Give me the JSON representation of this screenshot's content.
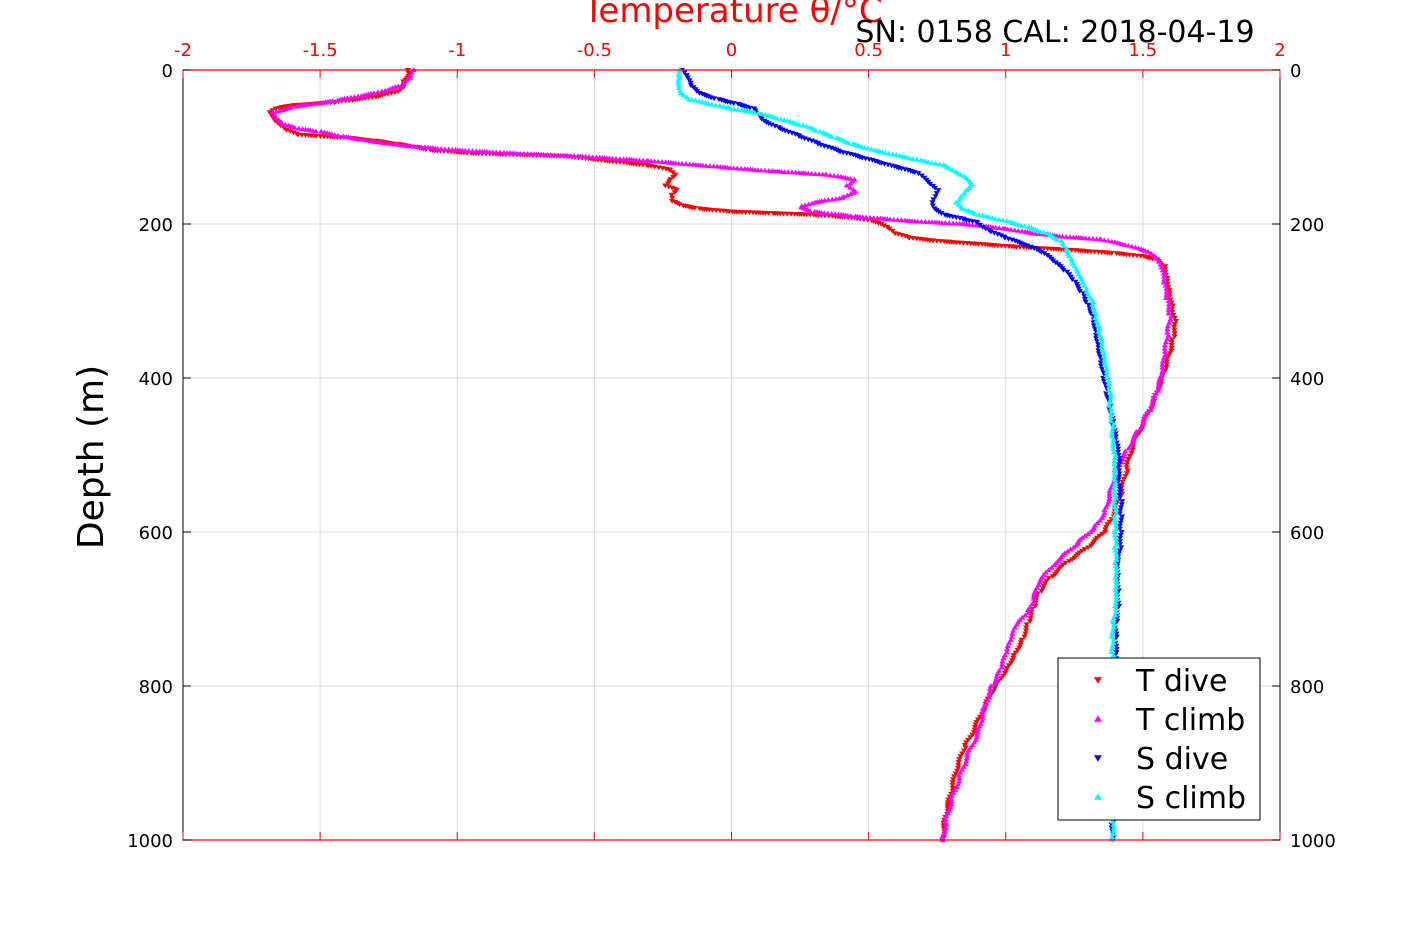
{
  "chart_data": {
    "type": "scatter",
    "title": "SN: 0158  CAL: 2018-04-19",
    "xlabel": "Temperature θ/°C",
    "ylabel": "Depth (m)",
    "xlim": [
      -2,
      2
    ],
    "ylim": [
      0,
      1000
    ],
    "y_reversed": true,
    "grid": true,
    "x_ticks": [
      "-2",
      "-1.5",
      "-1",
      "-0.5",
      "0",
      "0.5",
      "1",
      "1.5",
      "2"
    ],
    "y_ticks": [
      "0",
      "200",
      "400",
      "600",
      "800",
      "1000"
    ],
    "legend_position": "bottom-right",
    "colors": {
      "x_axis": "#ff0000",
      "grid": "#dcdcdc",
      "t_dive": "#ff0000",
      "t_climb": "#ff00ff",
      "s_dive": "#0000ff",
      "s_climb": "#00ffff"
    },
    "series": [
      {
        "name": "T dive",
        "marker": "triangle-down",
        "color": "#ff0000",
        "points": [
          [
            -1.18,
            0
          ],
          [
            -1.18,
            8
          ],
          [
            -1.2,
            15
          ],
          [
            -1.2,
            22
          ],
          [
            -1.22,
            28
          ],
          [
            -1.3,
            35
          ],
          [
            -1.45,
            42
          ],
          [
            -1.6,
            46
          ],
          [
            -1.66,
            50
          ],
          [
            -1.68,
            55
          ],
          [
            -1.67,
            60
          ],
          [
            -1.66,
            66
          ],
          [
            -1.64,
            72
          ],
          [
            -1.62,
            78
          ],
          [
            -1.58,
            84
          ],
          [
            -1.5,
            86
          ],
          [
            -1.4,
            88
          ],
          [
            -1.3,
            92
          ],
          [
            -1.22,
            96
          ],
          [
            -1.15,
            100
          ],
          [
            -1.1,
            104
          ],
          [
            -0.95,
            108
          ],
          [
            -0.6,
            112
          ],
          [
            -0.45,
            118
          ],
          [
            -0.3,
            124
          ],
          [
            -0.22,
            130
          ],
          [
            -0.2,
            136
          ],
          [
            -0.22,
            142
          ],
          [
            -0.24,
            150
          ],
          [
            -0.2,
            156
          ],
          [
            -0.22,
            162
          ],
          [
            -0.22,
            170
          ],
          [
            -0.18,
            176
          ],
          [
            -0.12,
            180
          ],
          [
            0.0,
            184
          ],
          [
            0.15,
            186
          ],
          [
            0.3,
            188
          ],
          [
            0.45,
            192
          ],
          [
            0.52,
            196
          ],
          [
            0.55,
            200
          ],
          [
            0.58,
            206
          ],
          [
            0.6,
            212
          ],
          [
            0.65,
            218
          ],
          [
            0.75,
            222
          ],
          [
            0.9,
            226
          ],
          [
            1.05,
            230
          ],
          [
            1.25,
            234
          ],
          [
            1.4,
            238
          ],
          [
            1.5,
            242
          ],
          [
            1.55,
            246
          ],
          [
            1.58,
            255
          ],
          [
            1.59,
            270
          ],
          [
            1.6,
            290
          ],
          [
            1.61,
            310
          ],
          [
            1.62,
            330
          ],
          [
            1.61,
            350
          ],
          [
            1.59,
            375
          ],
          [
            1.57,
            400
          ],
          [
            1.54,
            430
          ],
          [
            1.5,
            460
          ],
          [
            1.46,
            490
          ],
          [
            1.44,
            520
          ],
          [
            1.42,
            550
          ],
          [
            1.39,
            580
          ],
          [
            1.36,
            600
          ],
          [
            1.3,
            620
          ],
          [
            1.22,
            640
          ],
          [
            1.16,
            660
          ],
          [
            1.12,
            680
          ],
          [
            1.1,
            700
          ],
          [
            1.08,
            720
          ],
          [
            1.06,
            740
          ],
          [
            1.03,
            760
          ],
          [
            1.0,
            780
          ],
          [
            0.96,
            800
          ],
          [
            0.92,
            830
          ],
          [
            0.88,
            860
          ],
          [
            0.85,
            880
          ],
          [
            0.82,
            910
          ],
          [
            0.8,
            940
          ],
          [
            0.78,
            970
          ],
          [
            0.77,
            1000
          ]
        ]
      },
      {
        "name": "T climb",
        "marker": "triangle-up",
        "color": "#ff00ff",
        "points": [
          [
            -1.16,
            0
          ],
          [
            -1.17,
            10
          ],
          [
            -1.2,
            20
          ],
          [
            -1.3,
            30
          ],
          [
            -1.45,
            40
          ],
          [
            -1.6,
            48
          ],
          [
            -1.67,
            55
          ],
          [
            -1.66,
            62
          ],
          [
            -1.64,
            70
          ],
          [
            -1.58,
            76
          ],
          [
            -1.5,
            80
          ],
          [
            -1.42,
            86
          ],
          [
            -1.32,
            92
          ],
          [
            -1.2,
            98
          ],
          [
            -1.0,
            104
          ],
          [
            -0.8,
            108
          ],
          [
            -0.55,
            112
          ],
          [
            -0.3,
            118
          ],
          [
            -0.1,
            124
          ],
          [
            0.1,
            130
          ],
          [
            0.35,
            136
          ],
          [
            0.45,
            142
          ],
          [
            0.42,
            150
          ],
          [
            0.45,
            158
          ],
          [
            0.4,
            166
          ],
          [
            0.3,
            172
          ],
          [
            0.25,
            178
          ],
          [
            0.3,
            184
          ],
          [
            0.45,
            190
          ],
          [
            0.65,
            196
          ],
          [
            0.85,
            200
          ],
          [
            1.0,
            206
          ],
          [
            1.1,
            212
          ],
          [
            1.2,
            216
          ],
          [
            1.35,
            220
          ],
          [
            1.45,
            228
          ],
          [
            1.52,
            236
          ],
          [
            1.55,
            245
          ],
          [
            1.57,
            260
          ],
          [
            1.58,
            280
          ],
          [
            1.59,
            300
          ],
          [
            1.6,
            320
          ],
          [
            1.59,
            345
          ],
          [
            1.58,
            370
          ],
          [
            1.57,
            395
          ],
          [
            1.55,
            420
          ],
          [
            1.52,
            445
          ],
          [
            1.48,
            470
          ],
          [
            1.44,
            495
          ],
          [
            1.4,
            520
          ],
          [
            1.38,
            550
          ],
          [
            1.36,
            575
          ],
          [
            1.32,
            595
          ],
          [
            1.26,
            615
          ],
          [
            1.18,
            640
          ],
          [
            1.12,
            665
          ],
          [
            1.1,
            690
          ],
          [
            1.08,
            705
          ],
          [
            1.04,
            720
          ],
          [
            1.02,
            740
          ],
          [
            1.0,
            760
          ],
          [
            0.98,
            780
          ],
          [
            0.95,
            800
          ],
          [
            0.92,
            830
          ],
          [
            0.9,
            860
          ],
          [
            0.86,
            890
          ],
          [
            0.83,
            920
          ],
          [
            0.8,
            950
          ],
          [
            0.78,
            980
          ],
          [
            0.77,
            1000
          ]
        ]
      },
      {
        "name": "S dive",
        "marker": "triangle-down",
        "color": "#0000ff",
        "points": [
          [
            -0.18,
            0
          ],
          [
            -0.16,
            10
          ],
          [
            -0.15,
            20
          ],
          [
            -0.12,
            30
          ],
          [
            -0.05,
            38
          ],
          [
            0.02,
            44
          ],
          [
            0.08,
            50
          ],
          [
            0.1,
            58
          ],
          [
            0.12,
            66
          ],
          [
            0.18,
            76
          ],
          [
            0.25,
            86
          ],
          [
            0.32,
            96
          ],
          [
            0.4,
            106
          ],
          [
            0.48,
            114
          ],
          [
            0.56,
            122
          ],
          [
            0.62,
            128
          ],
          [
            0.68,
            134
          ],
          [
            0.7,
            140
          ],
          [
            0.72,
            148
          ],
          [
            0.75,
            156
          ],
          [
            0.74,
            164
          ],
          [
            0.73,
            172
          ],
          [
            0.74,
            180
          ],
          [
            0.78,
            188
          ],
          [
            0.85,
            194
          ],
          [
            0.9,
            198
          ],
          [
            0.92,
            204
          ],
          [
            0.95,
            210
          ],
          [
            1.0,
            218
          ],
          [
            1.08,
            228
          ],
          [
            1.14,
            238
          ],
          [
            1.18,
            250
          ],
          [
            1.22,
            262
          ],
          [
            1.25,
            275
          ],
          [
            1.28,
            290
          ],
          [
            1.3,
            305
          ],
          [
            1.32,
            320
          ],
          [
            1.33,
            340
          ],
          [
            1.34,
            360
          ],
          [
            1.35,
            380
          ],
          [
            1.36,
            400
          ],
          [
            1.37,
            420
          ],
          [
            1.38,
            440
          ],
          [
            1.39,
            460
          ],
          [
            1.4,
            480
          ],
          [
            1.41,
            500
          ],
          [
            1.41,
            520
          ],
          [
            1.41,
            540
          ],
          [
            1.42,
            560
          ],
          [
            1.42,
            580
          ],
          [
            1.42,
            600
          ],
          [
            1.42,
            620
          ],
          [
            1.41,
            640
          ],
          [
            1.41,
            660
          ],
          [
            1.41,
            680
          ],
          [
            1.41,
            700
          ],
          [
            1.4,
            720
          ],
          [
            1.4,
            740
          ],
          [
            1.4,
            760
          ],
          [
            1.4,
            780
          ],
          [
            1.39,
            800
          ],
          [
            1.39,
            820
          ],
          [
            1.39,
            840
          ],
          [
            1.39,
            860
          ],
          [
            1.39,
            880
          ],
          [
            1.39,
            900
          ],
          [
            1.39,
            920
          ],
          [
            1.39,
            940
          ],
          [
            1.39,
            960
          ],
          [
            1.39,
            980
          ],
          [
            1.39,
            1000
          ]
        ]
      },
      {
        "name": "S climb",
        "marker": "triangle-up",
        "color": "#00ffff",
        "points": [
          [
            -0.19,
            0
          ],
          [
            -0.19,
            10
          ],
          [
            -0.19,
            20
          ],
          [
            -0.18,
            30
          ],
          [
            -0.15,
            38
          ],
          [
            -0.08,
            44
          ],
          [
            0.0,
            50
          ],
          [
            0.1,
            56
          ],
          [
            0.18,
            64
          ],
          [
            0.26,
            72
          ],
          [
            0.32,
            80
          ],
          [
            0.38,
            88
          ],
          [
            0.44,
            96
          ],
          [
            0.52,
            104
          ],
          [
            0.62,
            112
          ],
          [
            0.7,
            118
          ],
          [
            0.78,
            124
          ],
          [
            0.82,
            132
          ],
          [
            0.86,
            140
          ],
          [
            0.88,
            148
          ],
          [
            0.86,
            156
          ],
          [
            0.84,
            164
          ],
          [
            0.82,
            172
          ],
          [
            0.84,
            180
          ],
          [
            0.9,
            188
          ],
          [
            1.0,
            196
          ],
          [
            1.08,
            204
          ],
          [
            1.15,
            212
          ],
          [
            1.2,
            222
          ],
          [
            1.22,
            232
          ],
          [
            1.24,
            245
          ],
          [
            1.26,
            258
          ],
          [
            1.28,
            272
          ],
          [
            1.3,
            288
          ],
          [
            1.32,
            305
          ],
          [
            1.33,
            322
          ],
          [
            1.34,
            340
          ],
          [
            1.35,
            360
          ],
          [
            1.36,
            380
          ],
          [
            1.37,
            400
          ],
          [
            1.38,
            420
          ],
          [
            1.38,
            440
          ],
          [
            1.39,
            460
          ],
          [
            1.39,
            480
          ],
          [
            1.4,
            500
          ],
          [
            1.4,
            520
          ],
          [
            1.4,
            540
          ],
          [
            1.4,
            560
          ],
          [
            1.4,
            580
          ],
          [
            1.4,
            600
          ],
          [
            1.4,
            620
          ],
          [
            1.4,
            640
          ],
          [
            1.4,
            660
          ],
          [
            1.4,
            680
          ],
          [
            1.4,
            700
          ],
          [
            1.39,
            720
          ],
          [
            1.39,
            740
          ],
          [
            1.39,
            760
          ],
          [
            1.39,
            780
          ],
          [
            1.39,
            800
          ],
          [
            1.39,
            820
          ],
          [
            1.39,
            840
          ],
          [
            1.39,
            860
          ],
          [
            1.39,
            880
          ],
          [
            1.39,
            900
          ],
          [
            1.39,
            920
          ],
          [
            1.39,
            940
          ],
          [
            1.39,
            960
          ],
          [
            1.39,
            980
          ],
          [
            1.39,
            1000
          ]
        ]
      }
    ]
  }
}
